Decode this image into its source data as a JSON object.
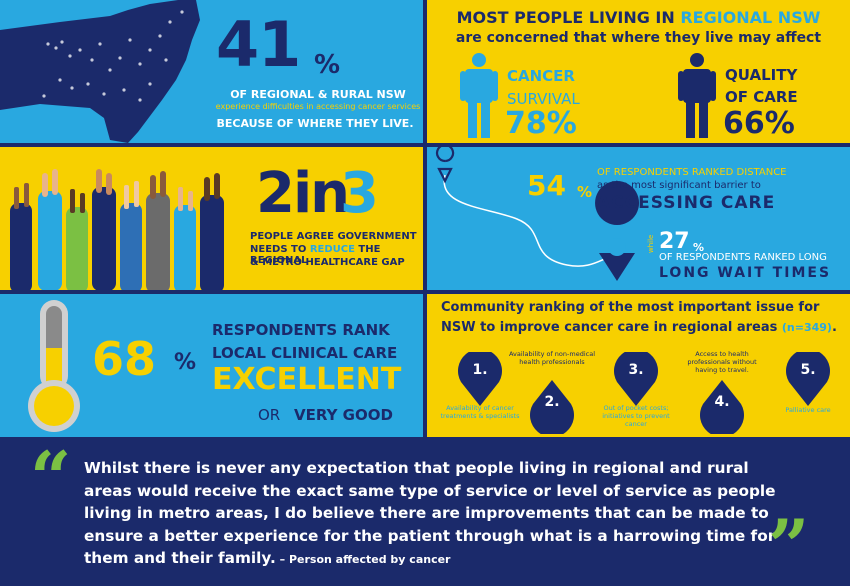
{
  "panel1": {
    "stat": "41",
    "pct": "%",
    "line1": "OF REGIONAL & RURAL NSW",
    "line2": "experience difficulties in accessing cancer services",
    "line3": "BECAUSE OF WHERE THEY LIVE."
  },
  "panel2": {
    "title_a": "MOST PEOPLE LIVING IN ",
    "title_b": "REGIONAL NSW",
    "subtitle": "are concerned that where they live may affect",
    "cancer_label_1": "CANCER",
    "cancer_label_2": "SURVIVAL",
    "cancer_value": "78%",
    "quality_label_1": "QUALITY",
    "quality_label_2": "OF CARE",
    "quality_value": "66%"
  },
  "panel3": {
    "stat_a": "2in",
    "stat_b": "3",
    "line1": "PEOPLE AGREE GOVERNMENT",
    "line2_a": "NEEDS TO ",
    "line2_b": "REDUCE",
    "line2_c": " THE REGIONAL",
    "line3": "& METRO HEALTHCARE GAP"
  },
  "panel4": {
    "stat1": "54",
    "pct": "%",
    "line1": "OF RESPONDENTS RANKED DISTANCE",
    "line2": "as the most significant barrier to",
    "line3": "ACCESSING CARE",
    "while": "while",
    "stat2": "27",
    "pct2": "%",
    "line4": "OF RESPONDENTS RANKED LONG",
    "line5": "LONG  WAIT TIMES"
  },
  "panel5": {
    "stat": "68",
    "pct": "%",
    "line1": "RESPONDENTS RANK",
    "line2": "LOCAL CLINICAL CARE",
    "line3": "EXCELLENT",
    "line4a": "OR",
    "line4b": "VERY GOOD"
  },
  "panel6": {
    "title1": "Community ranking of the most important issue for",
    "title2_a": "NSW to improve cancer care in regional areas ",
    "title2_b": "(n=349)",
    "title2_c": ".",
    "ranks": [
      {
        "num": "1.",
        "label": "Availability of cancer treatments & specialists"
      },
      {
        "num": "2.",
        "label": "Availability of non-medical health professionals"
      },
      {
        "num": "3.",
        "label": "Out of pocket costs; initiatives to prevent cancer"
      },
      {
        "num": "4.",
        "label": "Access to health professionals without having to travel."
      },
      {
        "num": "5.",
        "label": "Palliative care"
      }
    ]
  },
  "quote": {
    "open": "“",
    "close": "”",
    "text": "Whilst there is never any expectation that people living in regional and rural areas would receive the exact same type of service or level of service as people living in metro areas, I do believe there are improvements that can be made to ensure a better experience for the patient through what is a harrowing time for them and their family.",
    "attribution": " –  Person affected by cancer"
  },
  "colors": {
    "navy": "#1b2a6b",
    "blue": "#29a8e0",
    "yellow": "#f7d000",
    "green": "#7bc043"
  }
}
